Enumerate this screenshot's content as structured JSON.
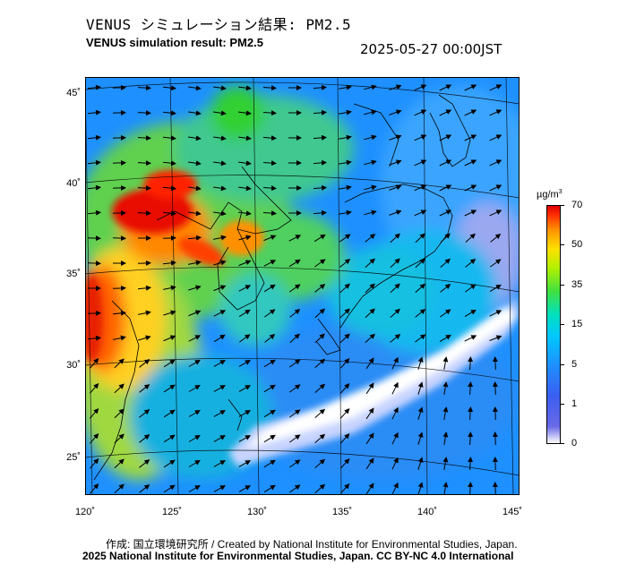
{
  "header": {
    "title_jp": "VENUS シミュレーション結果: PM2.5",
    "title_en": "VENUS simulation result: PM2.5",
    "timestamp": "2025-05-27 00:00JST"
  },
  "map": {
    "variable": "PM2.5",
    "lat_labels": [
      "45˚",
      "40˚",
      "35˚",
      "30˚",
      "25˚"
    ],
    "lon_labels": [
      "120˚",
      "125˚",
      "130˚",
      "135˚",
      "140˚",
      "145˚"
    ],
    "lat_range": [
      23,
      46
    ],
    "lon_range": [
      120,
      145
    ],
    "colors": {
      "sea_low": "#1e90ff",
      "clean_band": "#ffffff",
      "high": "#e00000",
      "mid": "#40e040"
    }
  },
  "colorbar": {
    "unit": "µg/m",
    "unit_exp": "3",
    "labels": [
      "70",
      "50",
      "35",
      "15",
      "5",
      "1",
      "0"
    ]
  },
  "footer": {
    "credit_jp": "作成: 国立環境研究所 / Created by National Institute for Environmental Studies, Japan.",
    "credit_en": "2025 National Institute for Environmental Studies, Japan. CC BY-NC 4.0 International"
  }
}
